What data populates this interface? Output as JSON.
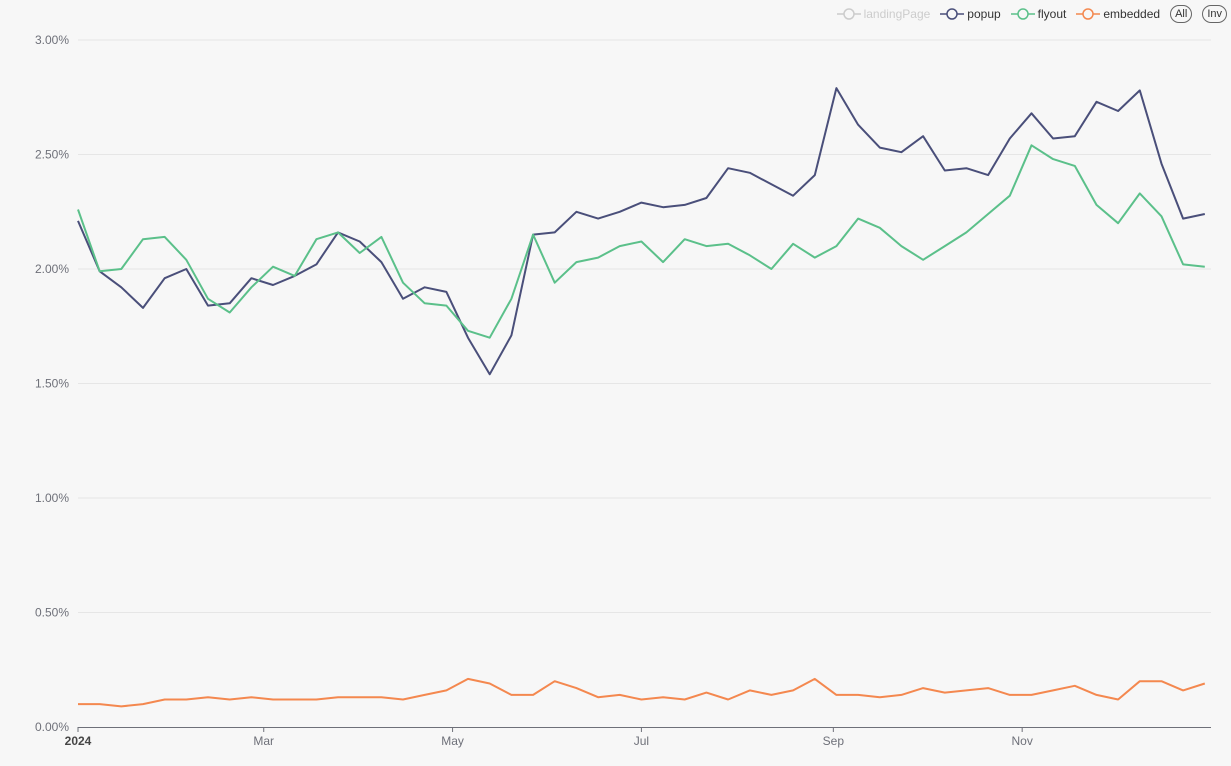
{
  "legend": {
    "items": [
      {
        "name": "landingPage",
        "color": "#cccccc",
        "active": false
      },
      {
        "name": "popup",
        "color": "#4a4f7a",
        "active": true
      },
      {
        "name": "flyout",
        "color": "#5bc08a",
        "active": true
      },
      {
        "name": "embedded",
        "color": "#f4884f",
        "active": true
      }
    ],
    "all_label": "All",
    "inv_label": "Inv"
  },
  "chart_data": {
    "type": "line",
    "x_start": "2024-01-01",
    "x_interval_days": 7,
    "x_tick_labels": [
      "2024",
      "Mar",
      "May",
      "Jul",
      "Sep",
      "Nov"
    ],
    "y_tick_labels": [
      "0.00%",
      "0.50%",
      "1.00%",
      "1.50%",
      "2.00%",
      "2.50%",
      "3.00%"
    ],
    "ylim": [
      0,
      3.0
    ],
    "y_unit": "%",
    "grid": true,
    "legend_position": "top-right",
    "series": [
      {
        "name": "popup",
        "color": "#4a4f7a",
        "values": [
          2.21,
          1.99,
          1.92,
          1.83,
          1.96,
          2.0,
          1.84,
          1.85,
          1.96,
          1.93,
          1.97,
          2.02,
          2.16,
          2.12,
          2.03,
          1.87,
          1.92,
          1.9,
          1.7,
          1.54,
          1.71,
          2.15,
          2.16,
          2.25,
          2.22,
          2.25,
          2.29,
          2.27,
          2.28,
          2.31,
          2.44,
          2.42,
          2.37,
          2.32,
          2.41,
          2.79,
          2.63,
          2.53,
          2.51,
          2.58,
          2.43,
          2.44,
          2.41,
          2.57,
          2.68,
          2.57,
          2.58,
          2.73,
          2.69,
          2.78,
          2.46,
          2.22,
          2.24
        ]
      },
      {
        "name": "flyout",
        "color": "#5bc08a",
        "values": [
          2.26,
          1.99,
          2.0,
          2.13,
          2.14,
          2.04,
          1.87,
          1.81,
          1.92,
          2.01,
          1.97,
          2.13,
          2.16,
          2.07,
          2.14,
          1.94,
          1.85,
          1.84,
          1.73,
          1.7,
          1.87,
          2.15,
          1.94,
          2.03,
          2.05,
          2.1,
          2.12,
          2.03,
          2.13,
          2.1,
          2.11,
          2.06,
          2.0,
          2.11,
          2.05,
          2.1,
          2.22,
          2.18,
          2.1,
          2.04,
          2.1,
          2.16,
          2.24,
          2.32,
          2.54,
          2.48,
          2.45,
          2.28,
          2.2,
          2.33,
          2.23,
          2.02,
          2.01
        ]
      },
      {
        "name": "embedded",
        "color": "#f4884f",
        "values": [
          0.1,
          0.1,
          0.09,
          0.1,
          0.12,
          0.12,
          0.13,
          0.12,
          0.13,
          0.12,
          0.12,
          0.12,
          0.13,
          0.13,
          0.13,
          0.12,
          0.14,
          0.16,
          0.21,
          0.19,
          0.14,
          0.14,
          0.2,
          0.17,
          0.13,
          0.14,
          0.12,
          0.13,
          0.12,
          0.15,
          0.12,
          0.16,
          0.14,
          0.16,
          0.21,
          0.14,
          0.14,
          0.13,
          0.14,
          0.17,
          0.15,
          0.16,
          0.17,
          0.14,
          0.14,
          0.16,
          0.18,
          0.14,
          0.12,
          0.2,
          0.2,
          0.16,
          0.19
        ]
      }
    ]
  }
}
